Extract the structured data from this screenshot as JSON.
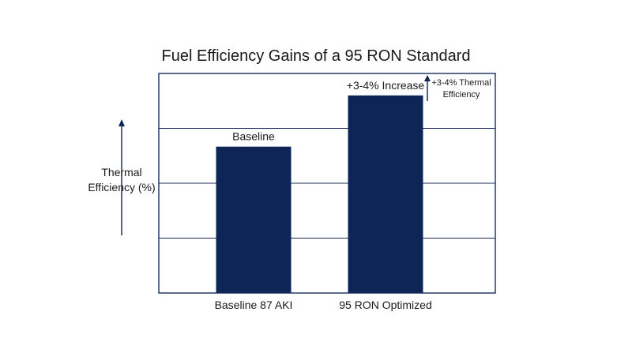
{
  "chart_data": {
    "type": "bar",
    "title": "Fuel Efficiency Gains of a 95 RON Standard",
    "xlabel": "",
    "ylabel": "Thermal Efficiency (%)",
    "ylabel_lines": [
      "Thermal",
      "Efficiency (%)"
    ],
    "categories": [
      "Baseline 87 AKI",
      "95 RON Optimized"
    ],
    "values": [
      100,
      103.5
    ],
    "value_note": "Relative thermal efficiency; the y-axis has no printed numeric scale. Baseline set to 100, 95 RON shown ~3.5% higher.",
    "data_labels": [
      "Baseline",
      "+3-4% Increase"
    ],
    "annotation": {
      "lines": [
        "+3-4% Thermal",
        "Efficiency"
      ],
      "arrow": "up"
    },
    "ylim": [
      90,
      105
    ],
    "grid": true,
    "bar_color": "#0d2657",
    "frame_color": "#1a2d5a"
  }
}
